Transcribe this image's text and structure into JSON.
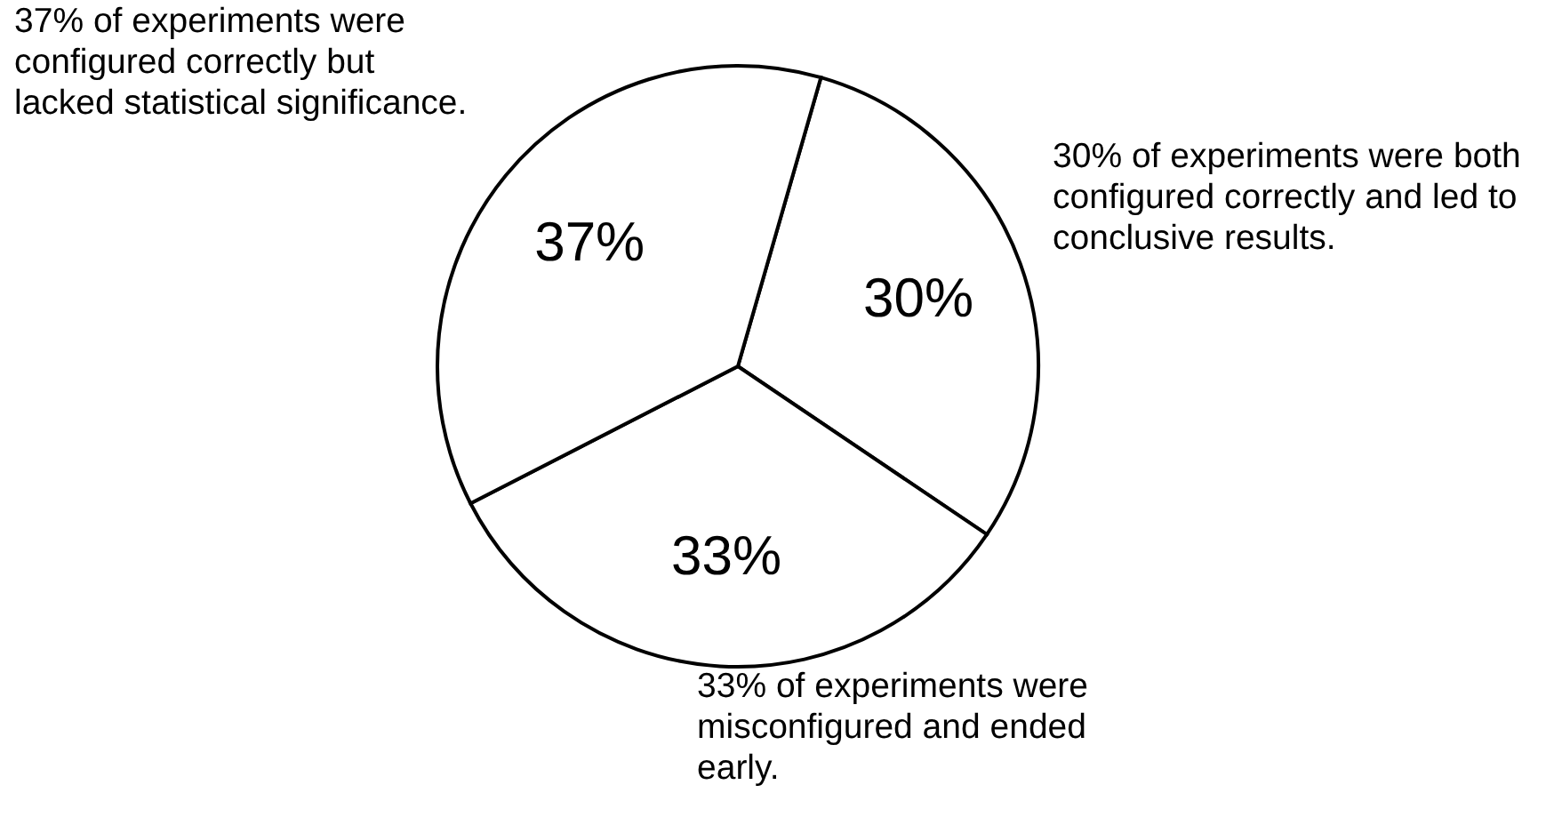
{
  "chart_data": {
    "type": "pie",
    "categories": [
      null,
      null,
      null
    ],
    "values": [
      30,
      33,
      37
    ],
    "colors": [
      "#ffffff",
      "#ffffff",
      "#ffffff"
    ],
    "value_labels": [
      "30%",
      "33%",
      "37%"
    ],
    "annotations": [
      "30% of experiments were both configured correctly and led to conclusive results.",
      "33% of experiments were misconfigured and ended early.",
      "37% of experiments were configured correctly but lacked statistical significance."
    ]
  }
}
